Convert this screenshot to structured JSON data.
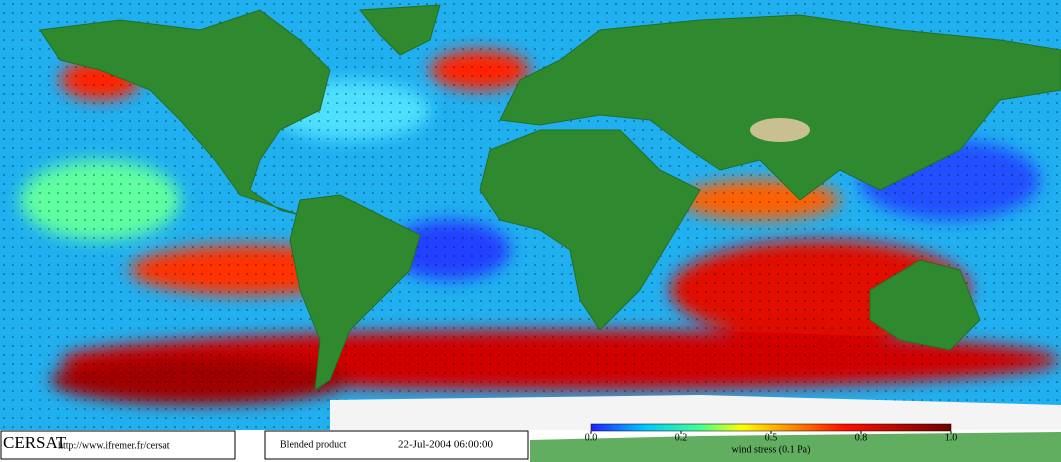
{
  "footer": {
    "logo": "CERSAT",
    "url": "http://www.ifremer.fr/cersat",
    "product": "Blended product",
    "timestamp": "22-Jul-2004 06:00:00"
  },
  "colorbar": {
    "label": "wind stress (0.1 Pa)",
    "ticks": [
      {
        "value": 0,
        "label": "0.0"
      },
      0.2,
      0.5,
      0.8,
      {
        "value": 1,
        "label": "1.0"
      }
    ]
  }
}
